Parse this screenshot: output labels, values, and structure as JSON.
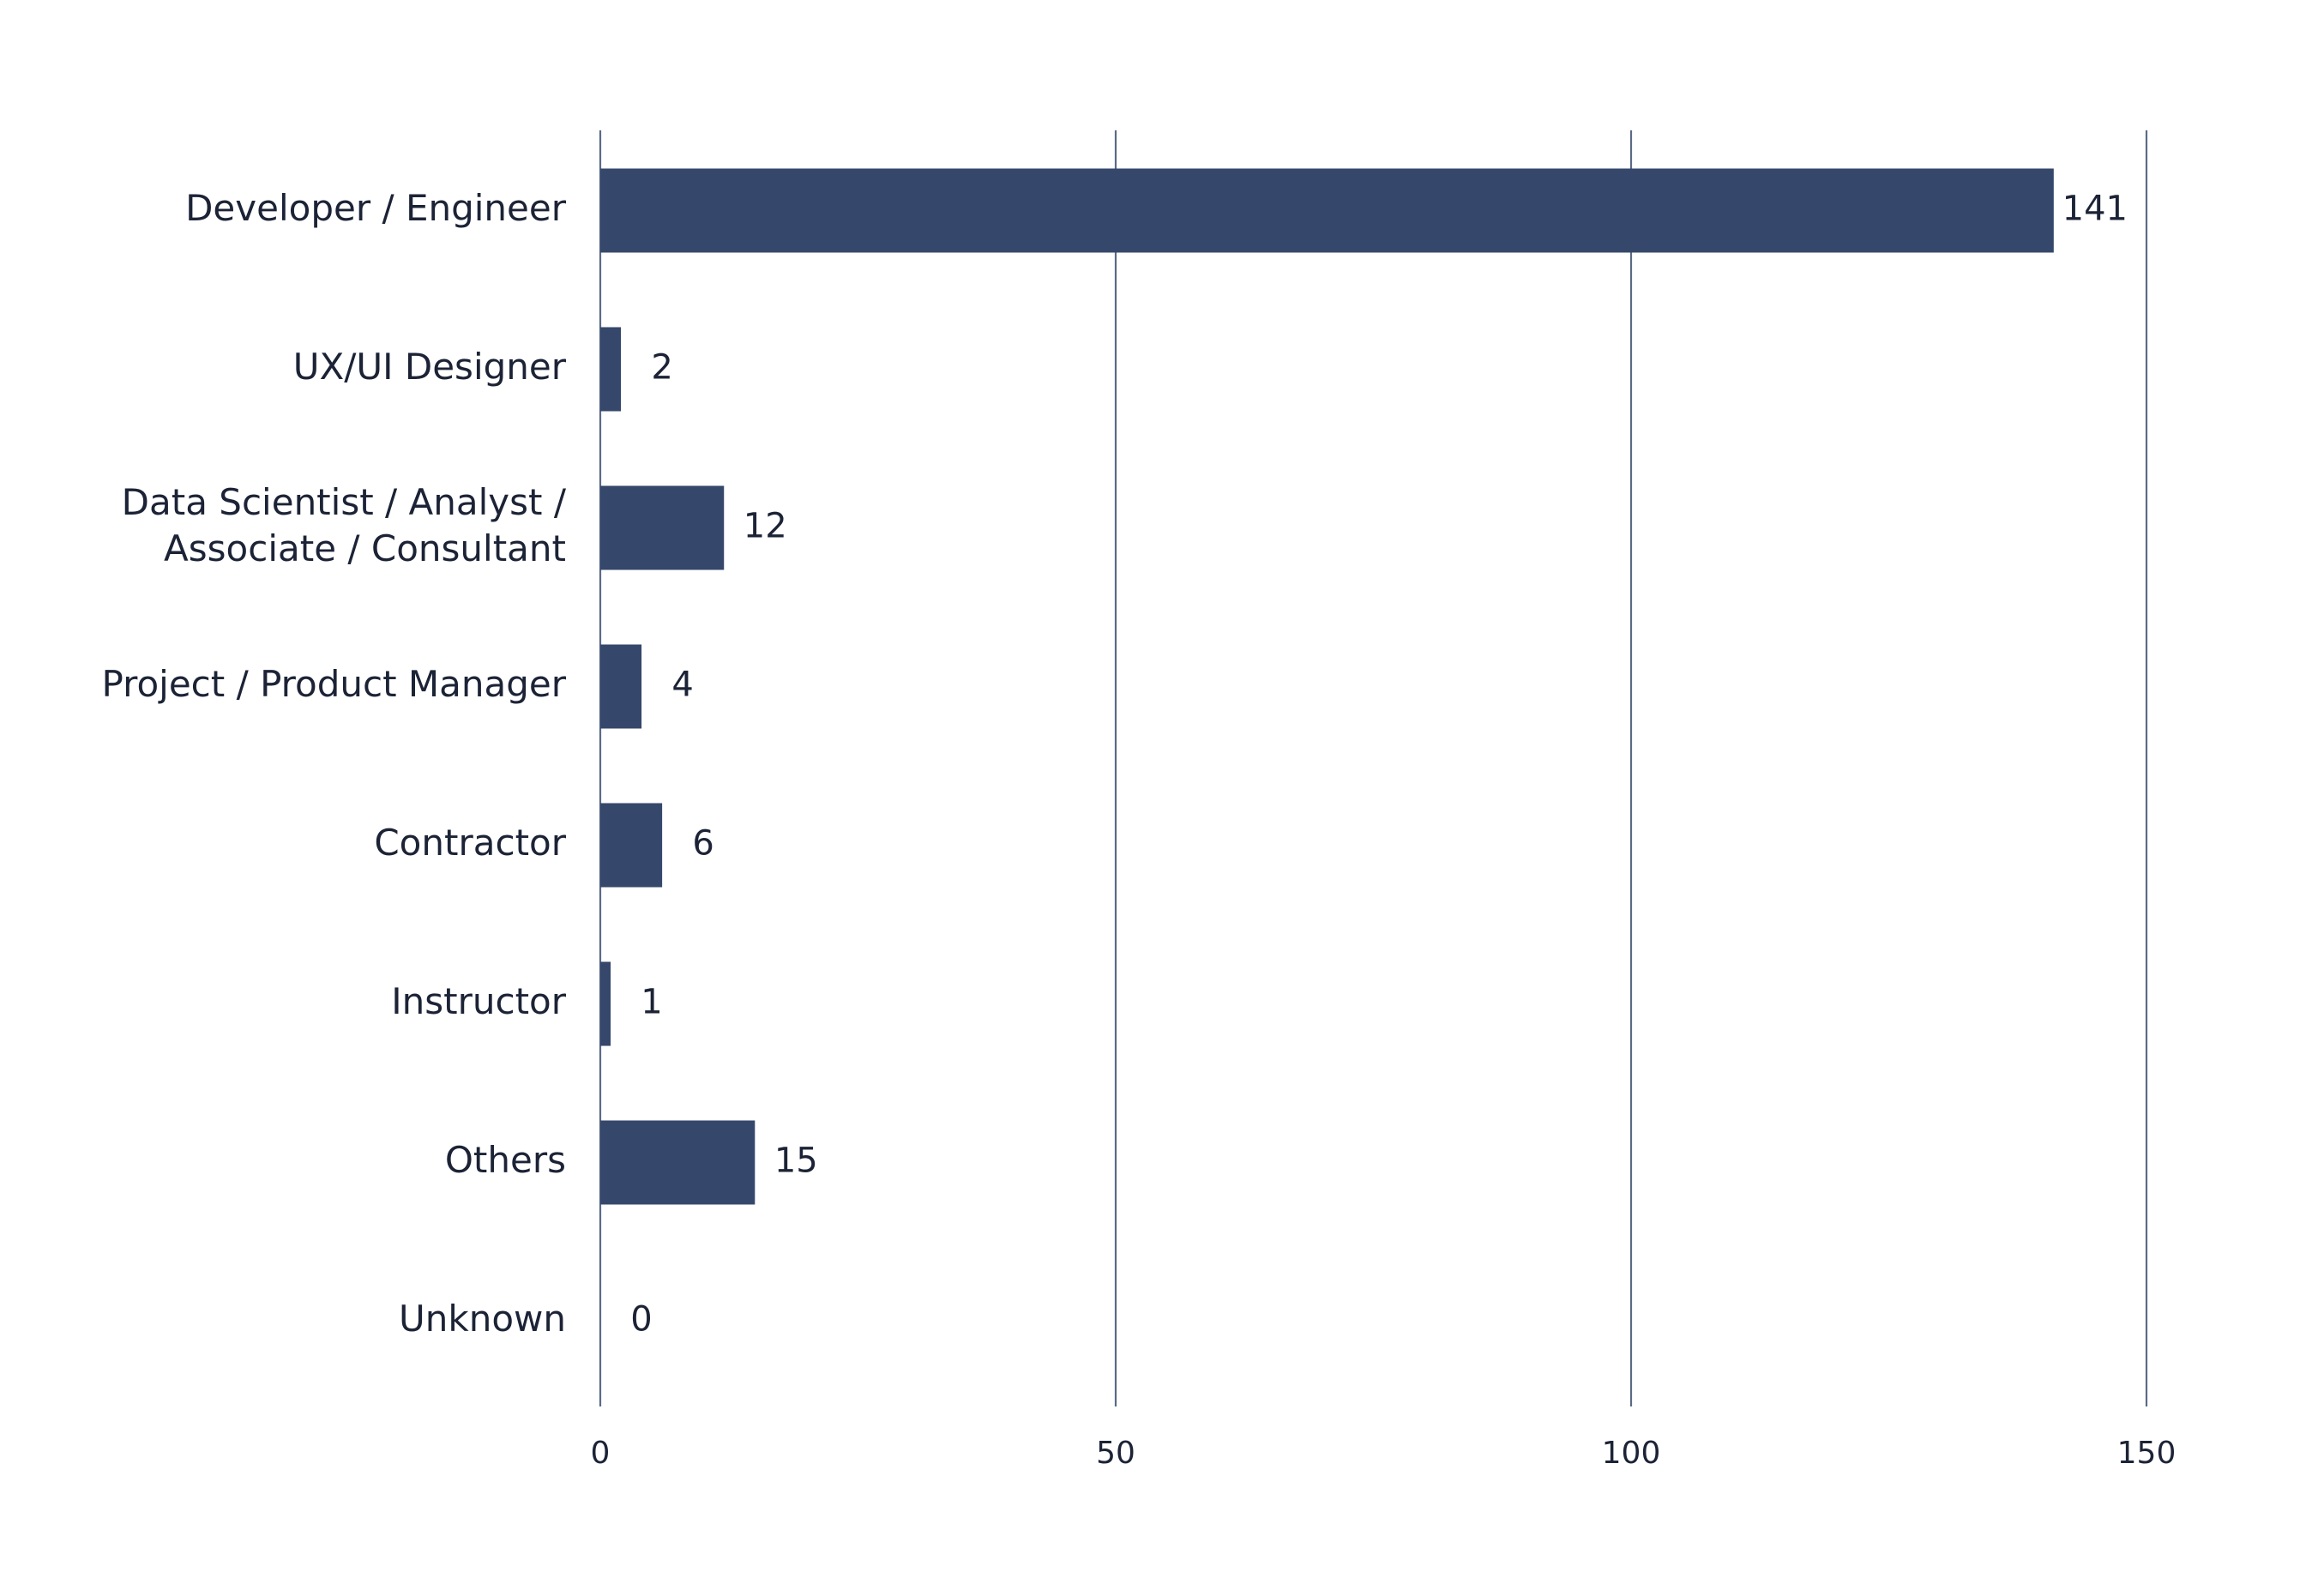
{
  "chart_data": {
    "type": "bar",
    "orientation": "horizontal",
    "categories": [
      [
        "Developer / Engineer"
      ],
      [
        "UX/UI Designer"
      ],
      [
        "Data Scientist / Analyst /",
        "Associate / Consultant"
      ],
      [
        "Project / Product Manager"
      ],
      [
        "Contractor"
      ],
      [
        "Instructor"
      ],
      [
        "Others"
      ],
      [
        "Unknown"
      ]
    ],
    "values": [
      141,
      2,
      12,
      4,
      6,
      1,
      15,
      0
    ],
    "data_labels": [
      "141",
      "2",
      "12",
      "4",
      "6",
      "1",
      "15",
      "0"
    ],
    "xlim": [
      0,
      150
    ],
    "x_ticks": [
      0,
      50,
      100,
      150
    ],
    "x_tick_labels": [
      "0",
      "50",
      "100",
      "150"
    ],
    "grid": true,
    "bar_color": "#35476a",
    "grid_color": "#5a6a87",
    "text_color": "#1c2336",
    "title": "",
    "xlabel": "",
    "ylabel": ""
  }
}
